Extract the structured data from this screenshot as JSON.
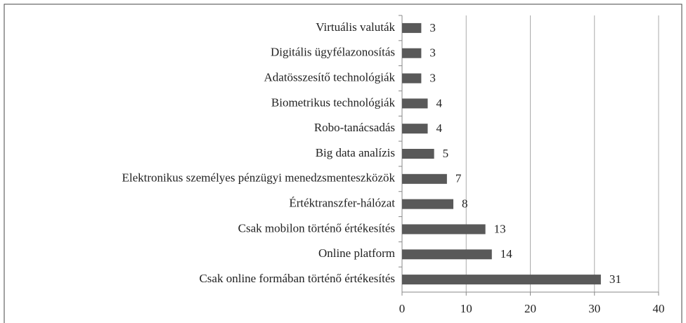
{
  "chart_data": {
    "type": "bar",
    "orientation": "horizontal",
    "categories": [
      "Virtuális valuták",
      "Digitális ügyfélazonosítás",
      "Adatösszesítő technológiák",
      "Biometrikus technológiák",
      "Robo-tanácsadás",
      "Big data analízis",
      "Elektronikus személyes pénzügyi menedzsmenteszközök",
      "Értéktranszfer-hálózat",
      "Csak mobilon történő értékesítés",
      "Online platform",
      "Csak online formában történő értékesítés"
    ],
    "values": [
      3,
      3,
      3,
      4,
      4,
      5,
      7,
      8,
      13,
      14,
      31
    ],
    "color": "#595959",
    "xlim": [
      0,
      40
    ],
    "xticks": [
      0,
      10,
      20,
      30,
      40
    ],
    "grid": true
  }
}
